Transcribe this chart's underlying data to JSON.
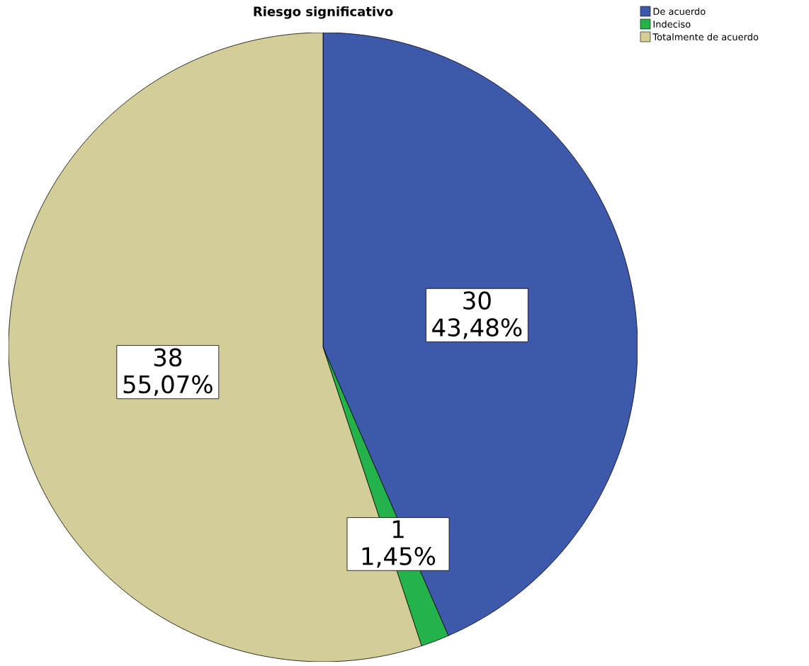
{
  "chart_data": {
    "type": "pie",
    "title": "Riesgo significativo",
    "categories": [
      "De acuerdo",
      "Indeciso",
      "Totalmente de acuerdo"
    ],
    "values": [
      30,
      1,
      38
    ],
    "colors": [
      "#3e58ac",
      "#24b34a",
      "#d3ce97"
    ],
    "value_labels": [
      "30 43,48%",
      "1 1,45%",
      "38 55,07%"
    ],
    "legend": "top right"
  }
}
